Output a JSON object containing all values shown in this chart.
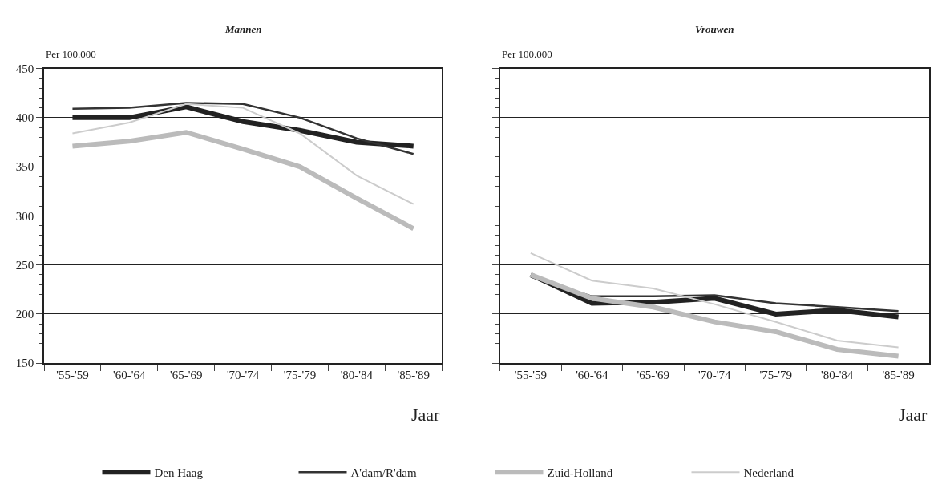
{
  "chart_data": [
    {
      "type": "line",
      "title": "Mannen",
      "ylabel": "Per 100.000",
      "xlabel": "Jaar",
      "categories": [
        "'55-'59",
        "'60-'64",
        "'65-'69",
        "'70-'74",
        "'75-'79",
        "'80-'84",
        "'85-'89"
      ],
      "series": [
        {
          "name": "Den Haag",
          "color": "#222222",
          "values": [
            400,
            400,
            411,
            396,
            387,
            375,
            371
          ]
        },
        {
          "name": "A'dam/R'dam",
          "color": "#333333",
          "values": [
            409,
            410,
            415,
            414,
            400,
            379,
            363
          ]
        },
        {
          "name": "Zuid-Holland",
          "color": "#bbbbbb",
          "values": [
            371,
            376,
            385,
            368,
            350,
            318,
            287
          ]
        },
        {
          "name": "Nederland",
          "color": "#cccccc",
          "values": [
            384,
            395,
            414,
            410,
            384,
            341,
            312
          ]
        }
      ],
      "ylim": [
        150,
        450
      ],
      "yticks": [
        150,
        200,
        250,
        300,
        350,
        400,
        450
      ],
      "grid": "y",
      "legend": "bottom",
      "marker": "none",
      "line_style": "solid"
    },
    {
      "type": "line",
      "title": "Vrouwen",
      "ylabel": "Per 100.000",
      "xlabel": "Jaar",
      "categories": [
        "'55-'59",
        "'60-'64",
        "'65-'69",
        "'70-'74",
        "'75-'79",
        "'80-'84",
        "'85-'89"
      ],
      "series": [
        {
          "color": "#222222",
          "values": [
            240,
            211,
            212,
            216,
            200,
            204,
            197
          ]
        },
        {
          "color": "#333333",
          "values": [
            238,
            218,
            218,
            219,
            211,
            207,
            203
          ]
        },
        {
          "color": "#bbbbbb",
          "values": [
            240,
            216,
            207,
            192,
            182,
            164,
            157
          ]
        },
        {
          "color": "#cccccc",
          "values": [
            262,
            234,
            226,
            210,
            192,
            173,
            166
          ]
        }
      ],
      "ylim": [
        150,
        450
      ],
      "yticks": [
        150,
        200,
        250,
        300,
        350,
        400,
        450
      ],
      "grid": "y",
      "marker": "none",
      "line_style": "solid",
      "tick_labels": "x"
    }
  ]
}
